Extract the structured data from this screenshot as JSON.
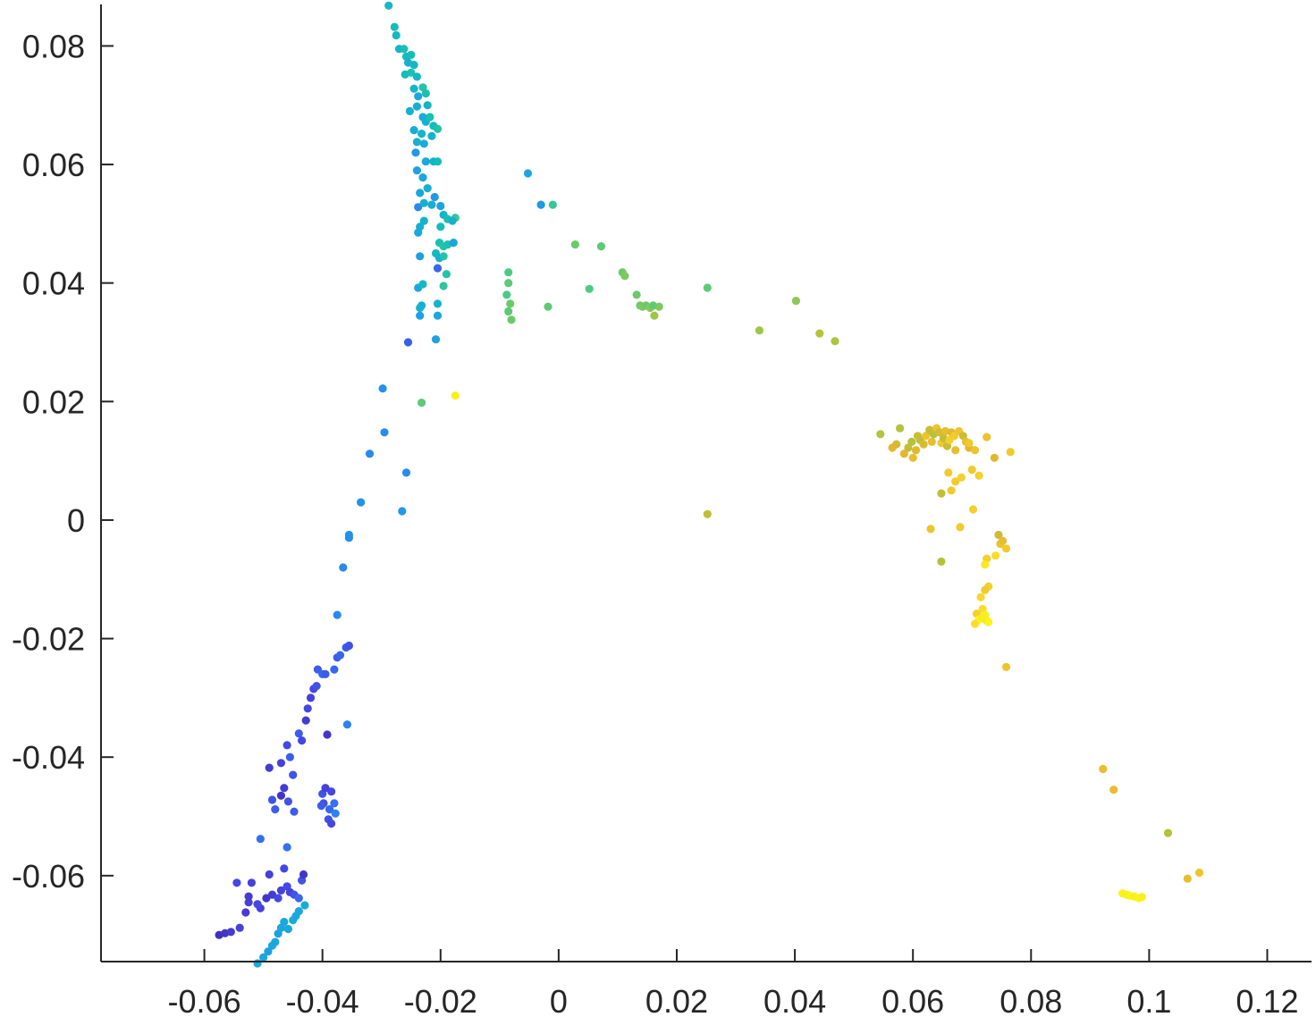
{
  "chart_data": {
    "type": "scatter",
    "title": "",
    "xlabel": "",
    "ylabel": "",
    "xlim": [
      -0.0775,
      0.1275
    ],
    "ylim": [
      -0.0745,
      0.087
    ],
    "xticks": [
      -0.06,
      -0.04,
      -0.02,
      0,
      0.02,
      0.04,
      0.06,
      0.08,
      0.1,
      0.12
    ],
    "yticks": [
      -0.06,
      -0.04,
      -0.02,
      0,
      0.02,
      0.04,
      0.06,
      0.08
    ],
    "xtick_labels": [
      "-0.06",
      "-0.04",
      "-0.02",
      "0",
      "0.02",
      "0.04",
      "0.06",
      "0.08",
      "0.1",
      "0.12"
    ],
    "ytick_labels": [
      "-0.06",
      "-0.04",
      "-0.02",
      "0",
      "0.02",
      "0.04",
      "0.06",
      "0.08"
    ],
    "grid": false,
    "colormap": "parula",
    "colormap_stops": [
      "#3e26a8",
      "#4743e2",
      "#2f7bf7",
      "#1aa6df",
      "#13beb8",
      "#48cb86",
      "#a2c742",
      "#e2b72e",
      "#fcd92d",
      "#f9fb15"
    ],
    "points": [
      [
        -0.0575,
        -0.07,
        0.04
      ],
      [
        -0.0565,
        -0.0697,
        0.06
      ],
      [
        -0.0555,
        -0.0695,
        0.08
      ],
      [
        -0.054,
        -0.0688,
        0.1
      ],
      [
        -0.0545,
        -0.0612,
        0.12
      ],
      [
        -0.053,
        -0.0662,
        0.08
      ],
      [
        -0.0525,
        -0.0645,
        0.1
      ],
      [
        -0.052,
        -0.0612,
        0.1
      ],
      [
        -0.0525,
        -0.0635,
        0.08
      ],
      [
        -0.0505,
        -0.0655,
        0.1
      ],
      [
        -0.051,
        -0.0648,
        0.12
      ],
      [
        -0.0495,
        -0.0638,
        0.06
      ],
      [
        -0.049,
        -0.0598,
        0.1
      ],
      [
        -0.0485,
        -0.0632,
        0.08
      ],
      [
        -0.0505,
        -0.0538,
        0.2
      ],
      [
        -0.051,
        -0.0748,
        0.34
      ],
      [
        -0.05,
        -0.0738,
        0.34
      ],
      [
        -0.0492,
        -0.0728,
        0.32
      ],
      [
        -0.0485,
        -0.0718,
        0.34
      ],
      [
        -0.048,
        -0.0712,
        0.34
      ],
      [
        -0.0475,
        -0.0698,
        0.32
      ],
      [
        -0.047,
        -0.0688,
        0.34
      ],
      [
        -0.0465,
        -0.0678,
        0.34
      ],
      [
        -0.0458,
        -0.069,
        0.34
      ],
      [
        -0.045,
        -0.0675,
        0.36
      ],
      [
        -0.0445,
        -0.0668,
        0.34
      ],
      [
        -0.044,
        -0.066,
        0.34
      ],
      [
        -0.043,
        -0.065,
        0.36
      ],
      [
        -0.0475,
        -0.0638,
        0.12
      ],
      [
        -0.047,
        -0.0625,
        0.1
      ],
      [
        -0.046,
        -0.0618,
        0.12
      ],
      [
        -0.0455,
        -0.0628,
        0.1
      ],
      [
        -0.0448,
        -0.0632,
        0.14
      ],
      [
        -0.044,
        -0.0638,
        0.18
      ],
      [
        -0.0435,
        -0.0608,
        0.14
      ],
      [
        -0.0432,
        -0.0598,
        0.06
      ],
      [
        -0.046,
        -0.0552,
        0.2
      ],
      [
        -0.0465,
        -0.0588,
        0.12
      ],
      [
        -0.0485,
        -0.0472,
        0.14
      ],
      [
        -0.048,
        -0.0488,
        0.16
      ],
      [
        -0.047,
        -0.0465,
        0.06
      ],
      [
        -0.0465,
        -0.0452,
        0.08
      ],
      [
        -0.0458,
        -0.0475,
        0.14
      ],
      [
        -0.0448,
        -0.0492,
        0.16
      ],
      [
        -0.049,
        -0.0418,
        0.08
      ],
      [
        -0.047,
        -0.041,
        0.1
      ],
      [
        -0.046,
        -0.038,
        0.12
      ],
      [
        -0.0455,
        -0.04,
        0.16
      ],
      [
        -0.045,
        -0.043,
        0.14
      ],
      [
        -0.044,
        -0.036,
        0.16
      ],
      [
        -0.0435,
        -0.0372,
        0.12
      ],
      [
        -0.0428,
        -0.0338,
        0.08
      ],
      [
        -0.0425,
        -0.0318,
        0.12
      ],
      [
        -0.042,
        -0.03,
        0.1
      ],
      [
        -0.0415,
        -0.0285,
        0.12
      ],
      [
        -0.041,
        -0.028,
        0.14
      ],
      [
        -0.0408,
        -0.0252,
        0.16
      ],
      [
        -0.04,
        -0.026,
        0.18
      ],
      [
        -0.0395,
        -0.026,
        0.16
      ],
      [
        -0.0392,
        -0.0362,
        0.06
      ],
      [
        -0.04,
        -0.0462,
        0.14
      ],
      [
        -0.0398,
        -0.0478,
        0.14
      ],
      [
        -0.0395,
        -0.0452,
        0.1
      ],
      [
        -0.039,
        -0.0505,
        0.14
      ],
      [
        -0.0388,
        -0.0488,
        0.18
      ],
      [
        -0.0385,
        -0.0512,
        0.12
      ],
      [
        -0.038,
        -0.0478,
        0.2
      ],
      [
        -0.0378,
        -0.0495,
        0.24
      ],
      [
        -0.0402,
        -0.0482,
        0.16
      ],
      [
        -0.0385,
        -0.0458,
        0.12
      ],
      [
        -0.038,
        -0.0252,
        0.18
      ],
      [
        -0.0375,
        -0.0232,
        0.16
      ],
      [
        -0.037,
        -0.0228,
        0.18
      ],
      [
        -0.036,
        -0.0215,
        0.16
      ],
      [
        -0.0355,
        -0.0212,
        0.14
      ],
      [
        -0.0358,
        -0.0345,
        0.24
      ],
      [
        -0.0375,
        -0.016,
        0.26
      ],
      [
        -0.0365,
        -0.008,
        0.26
      ],
      [
        -0.0355,
        -0.003,
        0.26
      ],
      [
        -0.0355,
        -0.0025,
        0.28
      ],
      [
        -0.0335,
        0.003,
        0.28
      ],
      [
        -0.032,
        0.0112,
        0.26
      ],
      [
        -0.0295,
        0.0148,
        0.26
      ],
      [
        -0.0298,
        0.0222,
        0.28
      ],
      [
        -0.0265,
        0.0015,
        0.3
      ],
      [
        -0.0258,
        0.008,
        0.26
      ],
      [
        -0.0232,
        0.0198,
        0.58
      ],
      [
        -0.0175,
        0.021,
        0.96
      ],
      [
        -0.0255,
        0.03,
        0.16
      ],
      [
        -0.0288,
        0.0868,
        0.42
      ],
      [
        -0.0278,
        0.0832,
        0.44
      ],
      [
        -0.0275,
        0.0818,
        0.42
      ],
      [
        -0.027,
        0.0795,
        0.4
      ],
      [
        -0.0262,
        0.0795,
        0.46
      ],
      [
        -0.0258,
        0.0782,
        0.42
      ],
      [
        -0.025,
        0.0785,
        0.44
      ],
      [
        -0.0255,
        0.0772,
        0.38
      ],
      [
        -0.0245,
        0.0768,
        0.4
      ],
      [
        -0.026,
        0.0752,
        0.44
      ],
      [
        -0.025,
        0.0755,
        0.46
      ],
      [
        -0.024,
        0.0748,
        0.42
      ],
      [
        -0.0245,
        0.0728,
        0.4
      ],
      [
        -0.0238,
        0.0715,
        0.34
      ],
      [
        -0.023,
        0.073,
        0.48
      ],
      [
        -0.0225,
        0.072,
        0.46
      ],
      [
        -0.0222,
        0.07,
        0.4
      ],
      [
        -0.0252,
        0.069,
        0.38
      ],
      [
        -0.024,
        0.0698,
        0.36
      ],
      [
        -0.023,
        0.068,
        0.36
      ],
      [
        -0.0225,
        0.0672,
        0.38
      ],
      [
        -0.0218,
        0.068,
        0.46
      ],
      [
        -0.0212,
        0.0665,
        0.42
      ],
      [
        -0.0205,
        0.066,
        0.48
      ],
      [
        -0.0245,
        0.0658,
        0.36
      ],
      [
        -0.0232,
        0.0652,
        0.4
      ],
      [
        -0.0215,
        0.0648,
        0.4
      ],
      [
        -0.024,
        0.0638,
        0.38
      ],
      [
        -0.0228,
        0.0635,
        0.36
      ],
      [
        -0.0242,
        0.062,
        0.3
      ],
      [
        -0.0225,
        0.0605,
        0.34
      ],
      [
        -0.0212,
        0.0605,
        0.4
      ],
      [
        -0.0205,
        0.0605,
        0.44
      ],
      [
        -0.024,
        0.059,
        0.32
      ],
      [
        -0.023,
        0.0578,
        0.34
      ],
      [
        -0.0235,
        0.0552,
        0.34
      ],
      [
        -0.0222,
        0.056,
        0.38
      ],
      [
        -0.021,
        0.0545,
        0.3
      ],
      [
        -0.0215,
        0.0532,
        0.36
      ],
      [
        -0.0238,
        0.0528,
        0.26
      ],
      [
        -0.0228,
        0.0535,
        0.38
      ],
      [
        -0.02,
        0.053,
        0.32
      ],
      [
        -0.0195,
        0.0515,
        0.4
      ],
      [
        -0.0188,
        0.0508,
        0.46
      ],
      [
        -0.0175,
        0.051,
        0.52
      ],
      [
        -0.018,
        0.0505,
        0.38
      ],
      [
        -0.0228,
        0.0505,
        0.4
      ],
      [
        -0.0235,
        0.0495,
        0.38
      ],
      [
        -0.0238,
        0.0485,
        0.34
      ],
      [
        -0.02,
        0.0495,
        0.44
      ],
      [
        -0.0202,
        0.0468,
        0.46
      ],
      [
        -0.0195,
        0.0462,
        0.48
      ],
      [
        -0.0188,
        0.0465,
        0.46
      ],
      [
        -0.0178,
        0.0468,
        0.34
      ],
      [
        -0.0208,
        0.045,
        0.42
      ],
      [
        -0.0202,
        0.0442,
        0.38
      ],
      [
        -0.0195,
        0.0445,
        0.48
      ],
      [
        -0.0235,
        0.0445,
        0.32
      ],
      [
        -0.0205,
        0.0425,
        0.18
      ],
      [
        -0.019,
        0.0415,
        0.48
      ],
      [
        -0.0195,
        0.0395,
        0.5
      ],
      [
        -0.0238,
        0.0392,
        0.34
      ],
      [
        -0.023,
        0.0398,
        0.42
      ],
      [
        -0.0232,
        0.0362,
        0.36
      ],
      [
        -0.0235,
        0.0358,
        0.38
      ],
      [
        -0.0205,
        0.0365,
        0.4
      ],
      [
        -0.0235,
        0.0345,
        0.32
      ],
      [
        -0.0205,
        0.0345,
        0.34
      ],
      [
        -0.0208,
        0.0305,
        0.32
      ],
      [
        -0.0052,
        0.0585,
        0.34
      ],
      [
        -0.003,
        0.0532,
        0.3
      ],
      [
        -0.001,
        0.0532,
        0.52
      ],
      [
        -0.0085,
        0.0418,
        0.56
      ],
      [
        -0.0085,
        0.04,
        0.58
      ],
      [
        -0.0088,
        0.038,
        0.56
      ],
      [
        -0.0082,
        0.0365,
        0.6
      ],
      [
        -0.0085,
        0.0352,
        0.58
      ],
      [
        -0.008,
        0.0338,
        0.6
      ],
      [
        -0.0018,
        0.036,
        0.58
      ],
      [
        0.0028,
        0.0465,
        0.6
      ],
      [
        0.0072,
        0.0462,
        0.58
      ],
      [
        0.0052,
        0.039,
        0.56
      ],
      [
        0.0108,
        0.0418,
        0.6
      ],
      [
        0.0112,
        0.0412,
        0.62
      ],
      [
        0.0132,
        0.038,
        0.6
      ],
      [
        0.0138,
        0.0362,
        0.6
      ],
      [
        0.0142,
        0.036,
        0.62
      ],
      [
        0.0148,
        0.0362,
        0.6
      ],
      [
        0.0155,
        0.0358,
        0.64
      ],
      [
        0.016,
        0.0362,
        0.58
      ],
      [
        0.0162,
        0.0345,
        0.66
      ],
      [
        0.017,
        0.036,
        0.62
      ],
      [
        0.0252,
        0.0392,
        0.58
      ],
      [
        0.034,
        0.032,
        0.66
      ],
      [
        0.0402,
        0.037,
        0.64
      ],
      [
        0.0442,
        0.0315,
        0.7
      ],
      [
        0.0468,
        0.0302,
        0.68
      ],
      [
        0.0252,
        0.001,
        0.72
      ],
      [
        0.0545,
        0.0145,
        0.7
      ],
      [
        0.0565,
        0.0122,
        0.78
      ],
      [
        0.0572,
        0.0128,
        0.76
      ],
      [
        0.0578,
        0.0155,
        0.7
      ],
      [
        0.0585,
        0.0112,
        0.78
      ],
      [
        0.0592,
        0.0122,
        0.72
      ],
      [
        0.0598,
        0.0132,
        0.7
      ],
      [
        0.06,
        0.0105,
        0.8
      ],
      [
        0.0605,
        0.0118,
        0.78
      ],
      [
        0.0608,
        0.0142,
        0.74
      ],
      [
        0.0612,
        0.0135,
        0.72
      ],
      [
        0.0618,
        0.0128,
        0.76
      ],
      [
        0.0622,
        0.0142,
        0.82
      ],
      [
        0.0628,
        0.0152,
        0.74
      ],
      [
        0.0632,
        0.0132,
        0.8
      ],
      [
        0.0635,
        0.0145,
        0.7
      ],
      [
        0.064,
        0.0155,
        0.82
      ],
      [
        0.0645,
        0.0148,
        0.76
      ],
      [
        0.0648,
        0.013,
        0.84
      ],
      [
        0.0652,
        0.0138,
        0.72
      ],
      [
        0.0655,
        0.015,
        0.8
      ],
      [
        0.0658,
        0.0125,
        0.74
      ],
      [
        0.0662,
        0.0135,
        0.86
      ],
      [
        0.0665,
        0.0148,
        0.78
      ],
      [
        0.067,
        0.0142,
        0.84
      ],
      [
        0.0672,
        0.0118,
        0.8
      ],
      [
        0.0678,
        0.015,
        0.82
      ],
      [
        0.0685,
        0.0142,
        0.74
      ],
      [
        0.069,
        0.0132,
        0.8
      ],
      [
        0.0695,
        0.0122,
        0.78
      ],
      [
        0.0705,
        0.0118,
        0.82
      ],
      [
        0.0725,
        0.014,
        0.82
      ],
      [
        0.0695,
        0.013,
        0.84
      ],
      [
        0.066,
        0.008,
        0.84
      ],
      [
        0.0672,
        0.0065,
        0.84
      ],
      [
        0.0682,
        0.0072,
        0.86
      ],
      [
        0.07,
        0.0085,
        0.84
      ],
      [
        0.0712,
        0.0075,
        0.86
      ],
      [
        0.0648,
        0.0045,
        0.72
      ],
      [
        0.0665,
        0.005,
        0.84
      ],
      [
        0.0702,
        0.0018,
        0.86
      ],
      [
        0.063,
        -0.0015,
        0.82
      ],
      [
        0.068,
        -0.0012,
        0.84
      ],
      [
        0.0648,
        -0.007,
        0.7
      ],
      [
        0.0738,
        0.0105,
        0.78
      ],
      [
        0.0765,
        0.0115,
        0.84
      ],
      [
        0.0745,
        -0.0025,
        0.74
      ],
      [
        0.0748,
        -0.004,
        0.82
      ],
      [
        0.0752,
        -0.0035,
        0.8
      ],
      [
        0.0758,
        -0.0048,
        0.84
      ],
      [
        0.074,
        -0.006,
        0.9
      ],
      [
        0.0725,
        -0.0065,
        0.86
      ],
      [
        0.0722,
        -0.0075,
        0.94
      ],
      [
        0.0728,
        -0.0112,
        0.86
      ],
      [
        0.0722,
        -0.0118,
        0.84
      ],
      [
        0.0715,
        -0.013,
        0.88
      ],
      [
        0.0718,
        -0.015,
        0.9
      ],
      [
        0.0708,
        -0.0158,
        0.86
      ],
      [
        0.072,
        -0.0162,
        0.96
      ],
      [
        0.0712,
        -0.0168,
        0.98
      ],
      [
        0.0718,
        -0.0165,
        0.94
      ],
      [
        0.0725,
        -0.017,
        0.92
      ],
      [
        0.0722,
        -0.016,
        0.96
      ],
      [
        0.0705,
        -0.0175,
        0.9
      ],
      [
        0.0728,
        -0.0172,
        0.98
      ],
      [
        0.0758,
        -0.0248,
        0.82
      ],
      [
        0.0922,
        -0.042,
        0.8
      ],
      [
        0.094,
        -0.0455,
        0.8
      ],
      [
        0.1032,
        -0.0528,
        0.7
      ],
      [
        0.1065,
        -0.0605,
        0.8
      ],
      [
        0.1085,
        -0.0595,
        0.82
      ],
      [
        0.0955,
        -0.063,
        0.98
      ],
      [
        0.0962,
        -0.0632,
        0.96
      ],
      [
        0.0968,
        -0.0634,
        0.98
      ],
      [
        0.0975,
        -0.0635,
        0.96
      ],
      [
        0.0982,
        -0.0638,
        0.98
      ],
      [
        0.0988,
        -0.0636,
        0.96
      ]
    ]
  }
}
